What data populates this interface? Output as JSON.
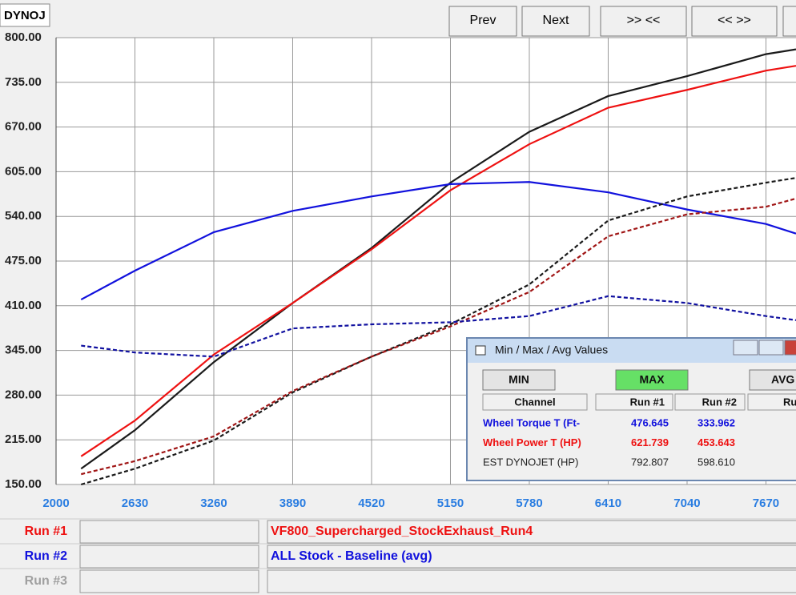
{
  "chart_data": {
    "type": "line",
    "x": [
      2200,
      2630,
      3260,
      3890,
      4520,
      5150,
      5780,
      6410,
      7040,
      7670,
      7910
    ],
    "series": [
      {
        "color": "#1a1a1a",
        "dashed": false,
        "values": [
          173,
          229,
          328,
          414,
          494,
          589,
          663,
          715,
          744,
          776,
          783
        ]
      },
      {
        "color": "#ee1111",
        "dashed": false,
        "values": [
          191,
          243,
          339,
          414,
          492,
          578,
          645,
          698,
          724,
          752,
          759
        ]
      },
      {
        "color": "#1111dd",
        "dashed": false,
        "values": [
          419,
          461,
          517,
          548,
          569,
          587,
          590,
          575,
          550,
          529,
          515
        ]
      },
      {
        "color": "#1a1a1a",
        "dashed": true,
        "values": [
          150,
          173,
          214,
          284,
          336,
          383,
          441,
          534,
          569,
          589,
          596
        ]
      },
      {
        "color": "#a01515",
        "dashed": true,
        "values": [
          165,
          184,
          220,
          286,
          336,
          380,
          430,
          511,
          543,
          554,
          566
        ]
      },
      {
        "color": "#1111a0",
        "dashed": true,
        "values": [
          352,
          342,
          336,
          377,
          383,
          386,
          395,
          424,
          414,
          395,
          389
        ]
      }
    ],
    "xlim": [
      2000,
      7910
    ],
    "ylim": [
      150,
      800
    ],
    "xticks": [
      2000,
      2630,
      3260,
      3890,
      4520,
      5150,
      5780,
      6410,
      7040,
      7670
    ],
    "yticks": [
      {
        "value": 150,
        "label": "150.00"
      },
      {
        "value": 215,
        "label": "215.00"
      },
      {
        "value": 280,
        "label": "280.00"
      },
      {
        "value": 345,
        "label": "345.00"
      },
      {
        "value": 410,
        "label": "410.00"
      },
      {
        "value": 475,
        "label": "475.00"
      },
      {
        "value": 540,
        "label": "540.00"
      },
      {
        "value": 605,
        "label": "605.00"
      },
      {
        "value": 670,
        "label": "670.00"
      },
      {
        "value": 735,
        "label": "735.00"
      },
      {
        "value": 800,
        "label": "800.00"
      }
    ],
    "grid": true
  },
  "ui": {
    "tab": "DYNOJ",
    "buttons": [
      "Prev",
      "Next",
      ">> <<",
      "<< >>"
    ],
    "dialog": {
      "title": "Min / Max / Avg Values",
      "modes": [
        "MIN",
        "MAX",
        "AVG"
      ],
      "headers": [
        "Channel",
        "Run #1",
        "Run #2",
        "Ru"
      ],
      "rows": [
        {
          "channel": "Wheel Torque T (Ft-",
          "run1": "476.645",
          "run2": "333.962",
          "color": "#1111dd"
        },
        {
          "channel": "Wheel Power T (HP)",
          "run1": "621.739",
          "run2": "453.643",
          "color": "#ee1111"
        },
        {
          "channel": "EST DYNOJET (HP)",
          "run1": "792.807",
          "run2": "598.610",
          "color": "#222222"
        }
      ]
    },
    "runs": [
      {
        "label": "Run #1",
        "file": "VF800_Supercharged_StockExhaust_Run4",
        "color": "#ee1111"
      },
      {
        "label": "Run #2",
        "file": "ALL Stock - Baseline (avg)",
        "color": "#1111dd"
      },
      {
        "label": "Run #3",
        "color": "#a0a0a0"
      }
    ]
  }
}
